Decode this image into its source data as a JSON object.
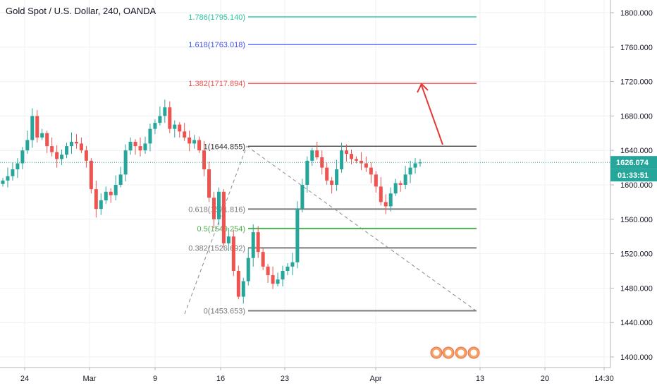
{
  "header": {
    "title": "Gold Spot / U.S. Dollar, 240, OANDA"
  },
  "chart_data": {
    "type": "candlestick",
    "symbol": "XAUUSD",
    "ylim": [
      1390,
      1830
    ],
    "yticks": [
      "1800.000",
      "1760.000",
      "1720.000",
      "1680.000",
      "1640.000",
      "1600.000",
      "1560.000",
      "1520.000",
      "1480.000",
      "1440.000",
      "1400.000"
    ],
    "xticks": [
      "24",
      "Mar",
      "9",
      "16",
      "23",
      "Apr",
      "13",
      "20",
      "14:30"
    ],
    "last_price": {
      "value": 1626.074,
      "label": "1626.074",
      "countdown": "01:33:51",
      "color": "#26a69a"
    },
    "fib_levels": [
      {
        "label": "1.786(1795.140)",
        "value": 1795.14,
        "color": "#26c6a0"
      },
      {
        "label": "1.618(1763.018)",
        "value": 1763.018,
        "color": "#3f51f5"
      },
      {
        "label": "1.382(1717.894)",
        "value": 1717.894,
        "color": "#ef5350"
      },
      {
        "label": "1(1644.855)",
        "value": 1644.855,
        "color": "#333333"
      },
      {
        "label": "0.618(1571.816)",
        "value": 1571.816,
        "color": "#7a7a7a"
      },
      {
        "label": "0.5(1549.254)",
        "value": 1549.254,
        "color": "#4caf50"
      },
      {
        "label": "0.382(1526.692)",
        "value": 1526.692,
        "color": "#7a7a7a"
      },
      {
        "label": "0(1453.653)",
        "value": 1453.653,
        "color": "#7a7a7a"
      }
    ],
    "closes": [
      1605,
      1610,
      1618,
      1625,
      1640,
      1652,
      1680,
      1655,
      1660,
      1645,
      1638,
      1630,
      1635,
      1645,
      1650,
      1648,
      1640,
      1628,
      1595,
      1572,
      1582,
      1592,
      1588,
      1600,
      1612,
      1640,
      1650,
      1645,
      1640,
      1648,
      1665,
      1672,
      1680,
      1690,
      1665,
      1670,
      1662,
      1655,
      1648,
      1652,
      1640,
      1618,
      1585,
      1560,
      1592,
      1532,
      1540,
      1500,
      1470,
      1488,
      1515,
      1545,
      1522,
      1505,
      1495,
      1485,
      1490,
      1500,
      1505,
      1510,
      1572,
      1600,
      1628,
      1640,
      1632,
      1620,
      1605,
      1600,
      1618,
      1640,
      1636,
      1630,
      1628,
      1625,
      1620,
      1612,
      1598,
      1580,
      1575,
      1590,
      1602,
      1600,
      1612,
      1620,
      1625,
      1626
    ]
  },
  "colors": {
    "up": "#26a69a",
    "down": "#ef5350",
    "grid": "#eef0f3",
    "axis": "#b2b5be"
  }
}
